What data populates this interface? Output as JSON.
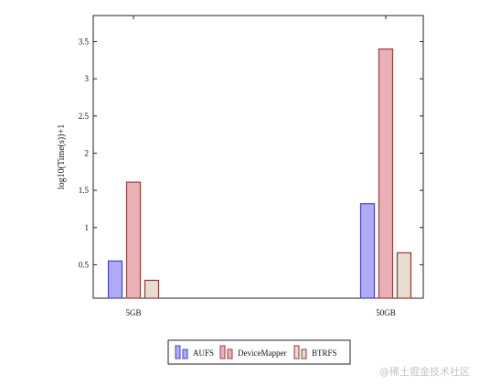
{
  "chart_data": {
    "type": "bar",
    "categories": [
      "5GB",
      "50GB"
    ],
    "series": [
      {
        "name": "AUFS",
        "values": [
          0.55,
          1.32
        ],
        "fill": "#aeaaf5",
        "stroke": "#4646c8"
      },
      {
        "name": "DeviceMapper",
        "values": [
          1.61,
          3.4
        ],
        "fill": "#e9b1b4",
        "stroke": "#9a3e44"
      },
      {
        "name": "BTRFS",
        "values": [
          0.29,
          0.66
        ],
        "fill": "#e7dccf",
        "stroke": "#8a3a3a"
      }
    ],
    "ylabel": "log10(Time(s))+1",
    "xlabel": "",
    "title": "",
    "ylim": [
      0.05,
      3.85
    ],
    "yticks": [
      "0.5",
      "1",
      "1.5",
      "2",
      "2.5",
      "3",
      "3.5"
    ],
    "grid": false,
    "legend_position": "bottom"
  },
  "watermark": "@稀土掘金技术社区"
}
